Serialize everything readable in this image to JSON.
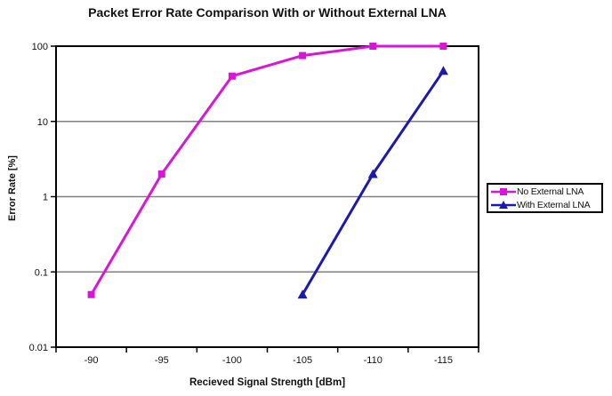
{
  "chart_data": {
    "type": "line",
    "title": "Packet Error Rate Comparison With or Without External LNA",
    "xlabel": "Recieved Signal Strength [dBm]",
    "ylabel": "Error Rate [%]",
    "x_categories": [
      "-90",
      "-95",
      "-100",
      "-105",
      "-110",
      "-115"
    ],
    "y_scale": "log",
    "ylim": [
      0.01,
      100
    ],
    "y_ticks": [
      100,
      10,
      1,
      0.1,
      0.01
    ],
    "y_tick_labels": [
      "100",
      "10",
      "1",
      "0.1",
      "0.01"
    ],
    "grid": "horizontal-major-only",
    "legend_position": "right-middle",
    "background_color": "#ffffff",
    "axis_color": "#000000",
    "gridline_color": "#808080",
    "series": [
      {
        "name": "No External LNA",
        "color": "#d816d8",
        "marker": "square",
        "values": [
          0.05,
          2,
          40,
          75,
          100,
          100
        ]
      },
      {
        "name": "With External LNA",
        "color": "#1a1ab0",
        "marker": "triangle",
        "values": [
          null,
          null,
          null,
          0.05,
          2,
          47
        ]
      }
    ]
  }
}
